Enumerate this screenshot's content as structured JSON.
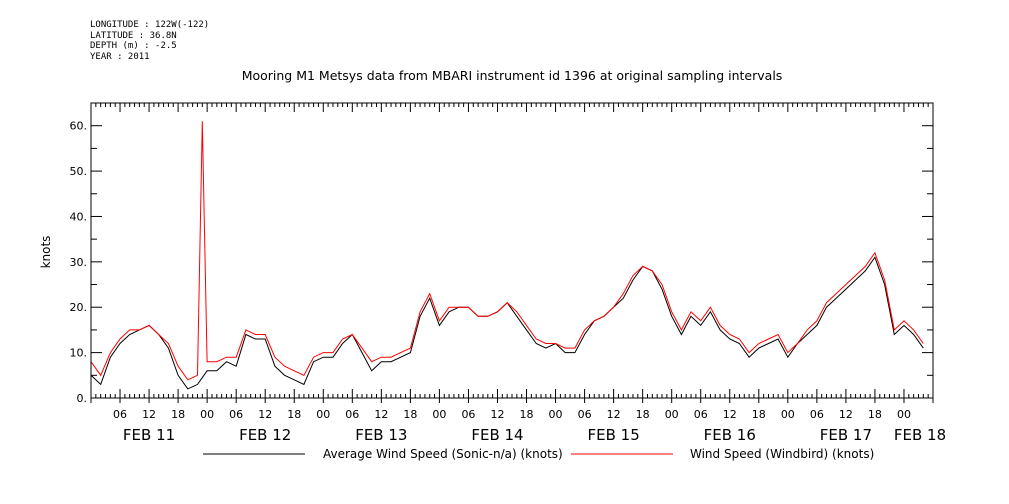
{
  "meta": {
    "longitude": "LONGITUDE : 122W(-122)",
    "latitude": "LATITUDE : 36.8N",
    "depth": "DEPTH (m) : -2.5",
    "year": "YEAR : 2011"
  },
  "chart_data": {
    "type": "line",
    "title": "Mooring M1 Metsys data from MBARI instrument id 1396 at original sampling intervals",
    "ylabel": "knots",
    "xlabel": "",
    "ylim": [
      0,
      65
    ],
    "xlim_hours": [
      0,
      174
    ],
    "yticks": [
      0,
      10,
      20,
      30,
      40,
      50,
      60
    ],
    "ytick_labels": [
      "0.",
      "10.",
      "20.",
      "30.",
      "40.",
      "50.",
      "60."
    ],
    "hour_ticks": [
      "06",
      "12",
      "18",
      "00",
      "06",
      "12",
      "18",
      "00",
      "06",
      "12",
      "18",
      "00",
      "06",
      "12",
      "18",
      "00",
      "06",
      "12",
      "18",
      "00",
      "06",
      "12",
      "18",
      "00",
      "06",
      "12",
      "18",
      "00"
    ],
    "day_labels": [
      "FEB 11",
      "FEB 12",
      "FEB 13",
      "FEB 14",
      "FEB 15",
      "FEB 16",
      "FEB 17",
      "FEB 18"
    ],
    "grid": false,
    "legend_position": "bottom",
    "series": [
      {
        "name": "Average Wind Speed (Sonic-n/a) (knots)",
        "color": "#000000",
        "x": [
          0,
          2,
          4,
          6,
          8,
          10,
          12,
          14,
          16,
          18,
          20,
          22,
          24,
          26,
          28,
          30,
          32,
          34,
          36,
          38,
          40,
          42,
          44,
          46,
          48,
          50,
          52,
          54,
          56,
          58,
          60,
          62,
          64,
          66,
          68,
          70,
          72,
          74,
          76,
          78,
          80,
          82,
          84,
          86,
          88,
          90,
          92,
          94,
          96,
          98,
          100,
          102,
          104,
          106,
          108,
          110,
          112,
          114,
          116,
          118,
          120,
          122,
          124,
          126,
          128,
          130,
          132,
          134,
          136,
          138,
          140,
          142,
          144,
          146,
          148,
          150,
          152,
          154,
          156,
          158,
          160,
          162,
          164,
          166,
          168,
          170,
          172
        ],
        "y": [
          5,
          3,
          9,
          12,
          14,
          15,
          16,
          14,
          11,
          5,
          2,
          3,
          6,
          6,
          8,
          7,
          14,
          13,
          13,
          7,
          5,
          4,
          3,
          8,
          9,
          9,
          12,
          14,
          10,
          6,
          8,
          8,
          9,
          10,
          18,
          22,
          16,
          19,
          20,
          20,
          18,
          18,
          19,
          21,
          18,
          15,
          12,
          11,
          12,
          10,
          10,
          14,
          17,
          18,
          20,
          22,
          26,
          29,
          28,
          24,
          18,
          14,
          18,
          16,
          19,
          15,
          13,
          12,
          9,
          11,
          12,
          13,
          9,
          12,
          14,
          16,
          20,
          22,
          24,
          26,
          28,
          31,
          25,
          14,
          16,
          14,
          11
        ]
      },
      {
        "name": "Wind Speed (Windbird) (knots)",
        "color": "#ff0000",
        "x": [
          0,
          2,
          4,
          6,
          8,
          10,
          12,
          14,
          16,
          18,
          20,
          22,
          23,
          24,
          26,
          28,
          30,
          32,
          34,
          36,
          38,
          40,
          42,
          44,
          46,
          48,
          50,
          52,
          54,
          56,
          58,
          60,
          62,
          64,
          66,
          68,
          70,
          72,
          74,
          76,
          78,
          80,
          82,
          84,
          86,
          88,
          90,
          92,
          94,
          96,
          98,
          100,
          102,
          104,
          106,
          108,
          110,
          112,
          114,
          116,
          118,
          120,
          122,
          124,
          126,
          128,
          130,
          132,
          134,
          136,
          138,
          140,
          142,
          144,
          146,
          148,
          150,
          152,
          154,
          156,
          158,
          160,
          162,
          164,
          166,
          168,
          170,
          172
        ],
        "y": [
          8,
          5,
          10,
          13,
          15,
          15,
          16,
          14,
          12,
          7,
          4,
          5,
          61,
          8,
          8,
          9,
          9,
          15,
          14,
          14,
          9,
          7,
          6,
          5,
          9,
          10,
          10,
          13,
          14,
          11,
          8,
          9,
          9,
          10,
          11,
          19,
          23,
          17,
          20,
          20,
          20,
          18,
          18,
          19,
          21,
          19,
          16,
          13,
          12,
          12,
          11,
          11,
          15,
          17,
          18,
          20,
          23,
          27,
          29,
          28,
          25,
          19,
          15,
          19,
          17,
          20,
          16,
          14,
          13,
          10,
          12,
          13,
          14,
          10,
          12,
          15,
          17,
          21,
          23,
          25,
          27,
          29,
          32,
          26,
          15,
          17,
          15,
          12
        ]
      }
    ]
  }
}
